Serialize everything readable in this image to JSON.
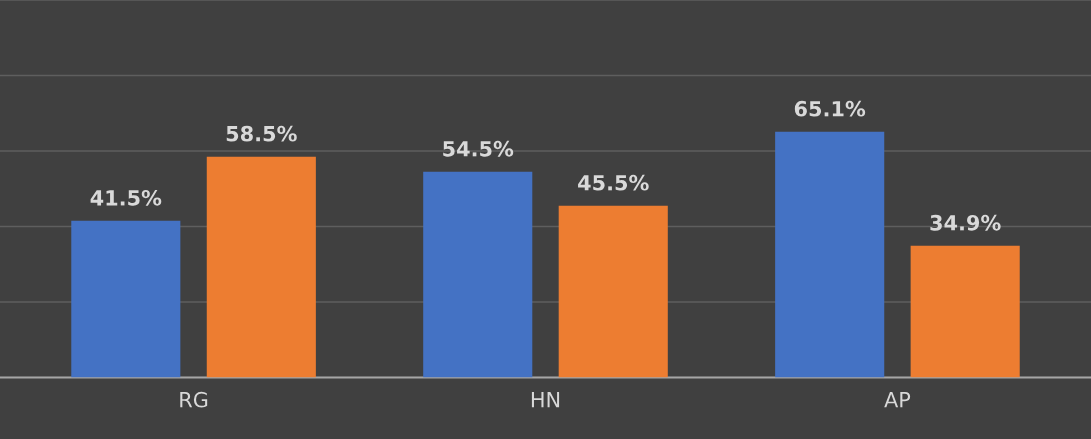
{
  "chart_data": {
    "type": "bar",
    "categories": [
      "RG",
      "HN",
      "AP"
    ],
    "series": [
      {
        "color": "#4472c4",
        "values": [
          41.5,
          54.5,
          65.1
        ],
        "value_labels": [
          "41.5%",
          "54.5%",
          "65.1%"
        ]
      },
      {
        "color": "#ed7d31",
        "values": [
          58.5,
          45.5,
          34.9
        ],
        "value_labels": [
          "58.5%",
          "45.5%",
          "34.9%"
        ]
      }
    ],
    "ylim": [
      0,
      100
    ],
    "yticks": [
      {
        "value": 0,
        "label": null
      },
      {
        "value": 20,
        "label": null
      },
      {
        "value": 40,
        "label": null
      },
      {
        "value": 60,
        "label": null
      },
      {
        "value": 80,
        "label": null
      },
      {
        "value": 100,
        "label": null
      }
    ],
    "grid": "y",
    "tick_labels": "x",
    "legend": false
  }
}
